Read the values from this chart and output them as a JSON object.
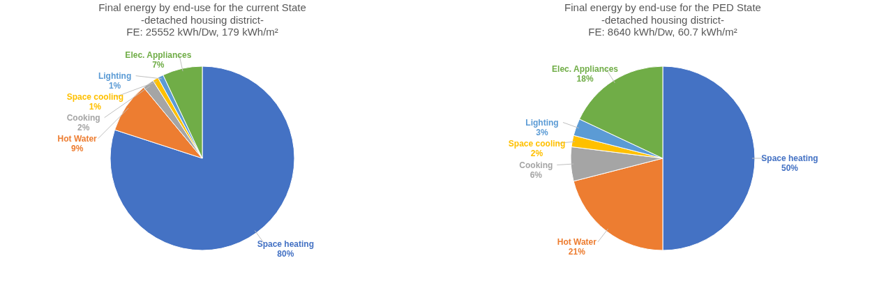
{
  "chart_data": [
    {
      "type": "pie",
      "title": "Final energy by end-use for the current State",
      "subtitle": "-detached housing district-\nFE: 25552 kWh/Dw, 179 kWh/m²",
      "categories": [
        "Space heating",
        "Hot Water",
        "Cooking",
        "Space cooling",
        "Lighting",
        "Elec. Appliances"
      ],
      "values": [
        80,
        9,
        2,
        1,
        1,
        7
      ],
      "value_labels": [
        "80%",
        "9%",
        "2%",
        "1%",
        "1%",
        "7%"
      ],
      "colors": [
        "#4472c4",
        "#ed7d31",
        "#a5a5a5",
        "#ffc000",
        "#5b9bd5",
        "#70ad47"
      ]
    },
    {
      "type": "pie",
      "title": "Final energy by end-use for the PED State",
      "subtitle": "-detached housing district-\nFE: 8640 kWh/Dw, 60.7 kWh/m²",
      "categories": [
        "Space heating",
        "Hot Water",
        "Cooking",
        "Space cooling",
        "Lighting",
        "Elec. Appliances"
      ],
      "values": [
        50,
        21,
        6,
        2,
        3,
        18
      ],
      "value_labels": [
        "50%",
        "21%",
        "6%",
        "2%",
        "3%",
        "18%"
      ],
      "colors": [
        "#4472c4",
        "#ed7d31",
        "#a5a5a5",
        "#ffc000",
        "#5b9bd5",
        "#70ad47"
      ]
    }
  ]
}
